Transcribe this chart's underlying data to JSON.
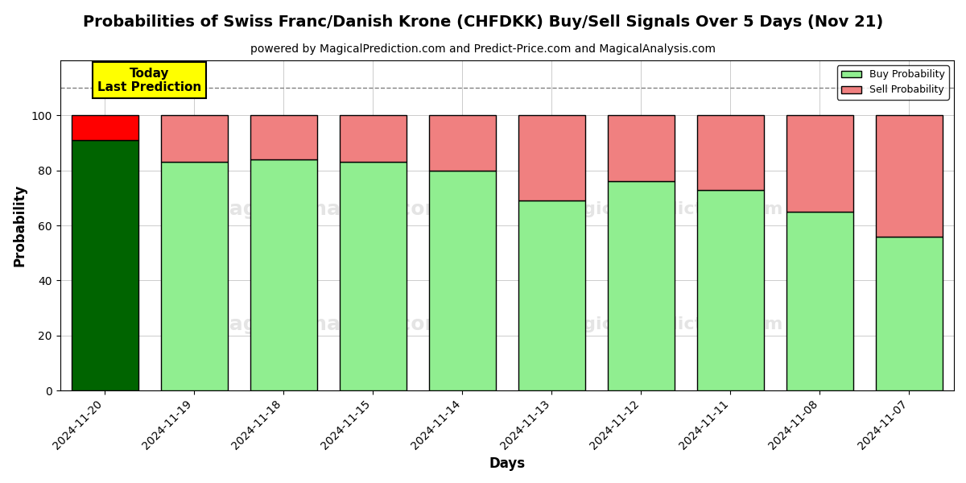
{
  "title": "Probabilities of Swiss Franc/Danish Krone (CHFDKK) Buy/Sell Signals Over 5 Days (Nov 21)",
  "subtitle": "powered by MagicalPrediction.com and Predict-Price.com and MagicalAnalysis.com",
  "xlabel": "Days",
  "ylabel": "Probability",
  "categories": [
    "2024-11-20",
    "2024-11-19",
    "2024-11-18",
    "2024-11-15",
    "2024-11-14",
    "2024-11-13",
    "2024-11-12",
    "2024-11-11",
    "2024-11-08",
    "2024-11-07"
  ],
  "buy_values": [
    91,
    83,
    84,
    83,
    80,
    69,
    76,
    73,
    65,
    56
  ],
  "sell_values": [
    9,
    17,
    16,
    17,
    20,
    31,
    24,
    27,
    35,
    44
  ],
  "today_bar_buy_color": "#006400",
  "today_bar_sell_color": "#FF0000",
  "normal_bar_buy_color": "#90EE90",
  "normal_bar_sell_color": "#F08080",
  "bar_edge_color": "#000000",
  "ylim": [
    0,
    120
  ],
  "yticks": [
    0,
    20,
    40,
    60,
    80,
    100
  ],
  "dashed_line_y": 110,
  "dashed_line_color": "#808080",
  "watermark_text_left": "MagicalAnalysis.com",
  "watermark_text_right": "MagicalPrediction.com",
  "watermark_text_bottom_left": "MagicalAnalysis.com",
  "watermark_text_bottom_right": "MagicalPrediction.com",
  "today_label_text": "Today\nLast Prediction",
  "today_label_bg": "#FFFF00",
  "today_label_fontsize": 11,
  "legend_buy_label": "Buy Probability",
  "legend_sell_label": "Sell Probability",
  "title_fontsize": 14,
  "subtitle_fontsize": 10,
  "axis_label_fontsize": 12,
  "tick_fontsize": 10,
  "background_color": "#ffffff",
  "grid_color": "#cccccc"
}
